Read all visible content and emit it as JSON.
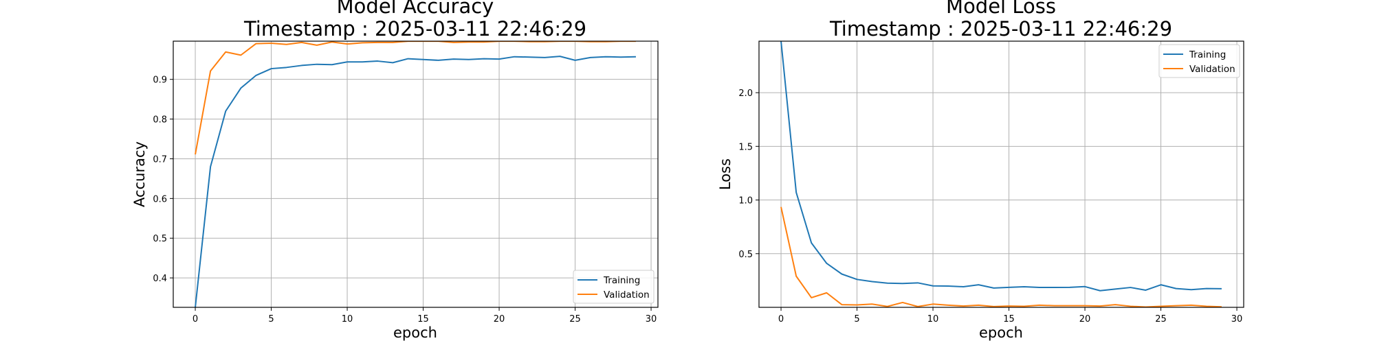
{
  "colors": {
    "training": "#1f77b4",
    "validation": "#ff7f0e",
    "grid": "#b0b0b0"
  },
  "chart_data": [
    {
      "type": "line",
      "title_line1": "Model Accuracy",
      "title_line2": "Timestamp : 2025-03-11 22:46:29",
      "xlabel": "epoch",
      "ylabel": "Accuracy",
      "xlim": [
        -1.45,
        30.45
      ],
      "ylim": [
        0.3259,
        0.9962
      ],
      "xticks": [
        0,
        5,
        10,
        15,
        20,
        25,
        30
      ],
      "yticks": [
        0.4,
        0.5,
        0.6,
        0.7,
        0.8,
        0.9
      ],
      "ytick_labels": [
        "0.4",
        "0.5",
        "0.6",
        "0.7",
        "0.8",
        "0.9"
      ],
      "grid": true,
      "legend_position": "lower-right",
      "x": [
        0,
        1,
        2,
        3,
        4,
        5,
        6,
        7,
        8,
        9,
        10,
        11,
        12,
        13,
        14,
        15,
        16,
        17,
        18,
        19,
        20,
        21,
        22,
        23,
        24,
        25,
        26,
        27,
        28,
        29
      ],
      "series": [
        {
          "name": "Training",
          "color": "#1f77b4",
          "values": [
            0.326,
            0.68,
            0.82,
            0.878,
            0.91,
            0.927,
            0.93,
            0.935,
            0.938,
            0.937,
            0.944,
            0.944,
            0.946,
            0.942,
            0.952,
            0.95,
            0.948,
            0.951,
            0.95,
            0.952,
            0.951,
            0.957,
            0.956,
            0.955,
            0.958,
            0.948,
            0.955,
            0.957,
            0.956,
            0.957
          ]
        },
        {
          "name": "Validation",
          "color": "#ff7f0e",
          "values": [
            0.711,
            0.921,
            0.969,
            0.961,
            0.99,
            0.991,
            0.988,
            0.993,
            0.986,
            0.994,
            0.989,
            0.992,
            0.993,
            0.993,
            0.996,
            0.996,
            0.996,
            0.993,
            0.994,
            0.994,
            0.996,
            0.996,
            0.995,
            0.995,
            0.996,
            0.996,
            0.995,
            0.995,
            0.996,
            0.996
          ]
        }
      ]
    },
    {
      "type": "line",
      "title_line1": "Model Loss",
      "title_line2": "Timestamp : 2025-03-11 22:46:29",
      "xlabel": "epoch",
      "ylabel": "Loss",
      "xlim": [
        -1.45,
        30.45
      ],
      "ylim": [
        0.0,
        2.48
      ],
      "xticks": [
        0,
        5,
        10,
        15,
        20,
        25,
        30
      ],
      "yticks": [
        0.5,
        1.0,
        1.5,
        2.0
      ],
      "ytick_labels": [
        "0.5",
        "1.0",
        "1.5",
        "2.0"
      ],
      "grid": true,
      "legend_position": "upper-right",
      "x": [
        0,
        1,
        2,
        3,
        4,
        5,
        6,
        7,
        8,
        9,
        10,
        11,
        12,
        13,
        14,
        15,
        16,
        17,
        18,
        19,
        20,
        21,
        22,
        23,
        24,
        25,
        26,
        27,
        28,
        29
      ],
      "series": [
        {
          "name": "Training",
          "color": "#1f77b4",
          "values": [
            2.48,
            1.07,
            0.6,
            0.41,
            0.31,
            0.26,
            0.24,
            0.225,
            0.222,
            0.228,
            0.2,
            0.198,
            0.192,
            0.21,
            0.18,
            0.186,
            0.192,
            0.185,
            0.185,
            0.186,
            0.193,
            0.155,
            0.17,
            0.185,
            0.16,
            0.21,
            0.175,
            0.165,
            0.175,
            0.173
          ]
        },
        {
          "name": "Validation",
          "color": "#ff7f0e",
          "values": [
            0.935,
            0.29,
            0.09,
            0.135,
            0.025,
            0.022,
            0.03,
            0.008,
            0.045,
            0.007,
            0.03,
            0.02,
            0.012,
            0.02,
            0.007,
            0.012,
            0.01,
            0.02,
            0.015,
            0.015,
            0.015,
            0.012,
            0.025,
            0.01,
            0.003,
            0.01,
            0.015,
            0.02,
            0.01,
            0.005
          ]
        }
      ]
    }
  ]
}
